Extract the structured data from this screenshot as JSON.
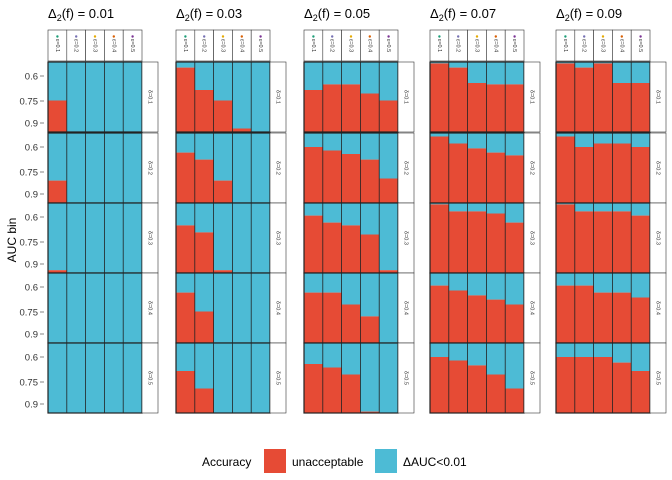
{
  "chart_data": {
    "type": "bar",
    "stacked": true,
    "ylabel": "AUC bin",
    "y_ticks": [
      "0.6",
      "0.75",
      "0.9"
    ],
    "legend": {
      "title": "Accuracy",
      "position": "bottom",
      "items": [
        {
          "label": "unacceptable",
          "color": "#E64B35"
        },
        {
          "label": "ΔAUC<0.01",
          "color": "#4DBBD5"
        }
      ]
    },
    "column_facets": [
      {
        "prefix": "Δ",
        "sub": "2",
        "suffix": "(f) = 0.01"
      },
      {
        "prefix": "Δ",
        "sub": "2",
        "suffix": "(f) = 0.03"
      },
      {
        "prefix": "Δ",
        "sub": "2",
        "suffix": "(f) = 0.05"
      },
      {
        "prefix": "Δ",
        "sub": "2",
        "suffix": "(f) = 0.07"
      },
      {
        "prefix": "Δ",
        "sub": "2",
        "suffix": "(f) = 0.09"
      }
    ],
    "epsilon_labels": [
      "ε=0.1",
      "ε=0.2",
      "ε=0.3",
      "ε=0.4",
      "ε=0.5"
    ],
    "epsilon_colors": [
      "#1b9e77",
      "#7570b3",
      "#e6ab02",
      "#d95f02",
      "#7b3294"
    ],
    "delta_labels": [
      "δ=0.1",
      "δ=0.2",
      "δ=0.3",
      "δ=0.4",
      "δ=0.5"
    ],
    "unacceptable_share": [
      [
        [
          0.45,
          0,
          0,
          0,
          0
        ],
        [
          0.32,
          0,
          0,
          0,
          0
        ],
        [
          0.04,
          0,
          0,
          0,
          0
        ],
        [
          0,
          0,
          0,
          0,
          0
        ],
        [
          0,
          0,
          0,
          0,
          0
        ]
      ],
      [
        [
          0.92,
          0.6,
          0.45,
          0.05,
          0
        ],
        [
          0.72,
          0.62,
          0.32,
          0,
          0
        ],
        [
          0.68,
          0.58,
          0.04,
          0,
          0
        ],
        [
          0.72,
          0.45,
          0,
          0,
          0
        ],
        [
          0.6,
          0.35,
          0,
          0,
          0
        ]
      ],
      [
        [
          0.6,
          0.68,
          0.68,
          0.55,
          0.45
        ],
        [
          0.8,
          0.75,
          0.7,
          0.62,
          0.35
        ],
        [
          0.82,
          0.72,
          0.68,
          0.55,
          0.04
        ],
        [
          0.72,
          0.72,
          0.55,
          0.38,
          0
        ],
        [
          0.7,
          0.65,
          0.55,
          0.02,
          0
        ]
      ],
      [
        [
          0.98,
          0.92,
          0.7,
          0.68,
          0.68
        ],
        [
          0.95,
          0.85,
          0.78,
          0.72,
          0.68
        ],
        [
          0.98,
          0.88,
          0.88,
          0.85,
          0.72
        ],
        [
          0.82,
          0.75,
          0.68,
          0.62,
          0.55
        ],
        [
          0.8,
          0.75,
          0.68,
          0.55,
          0.35
        ]
      ],
      [
        [
          0.98,
          0.92,
          0.98,
          0.7,
          0.7
        ],
        [
          0.95,
          0.8,
          0.85,
          0.85,
          0.8
        ],
        [
          0.98,
          0.88,
          0.88,
          0.88,
          0.82
        ],
        [
          0.82,
          0.82,
          0.72,
          0.72,
          0.65
        ],
        [
          0.8,
          0.8,
          0.8,
          0.72,
          0.6
        ]
      ]
    ]
  }
}
